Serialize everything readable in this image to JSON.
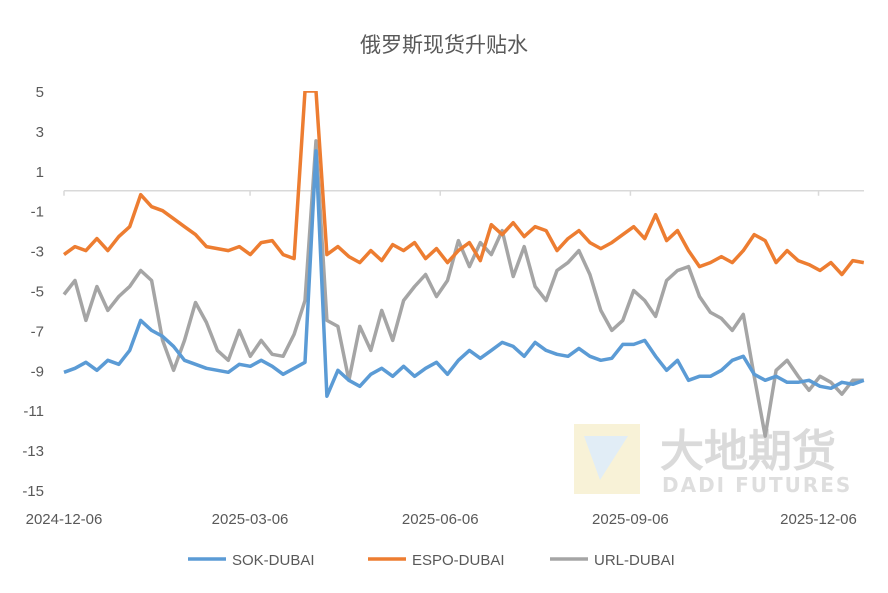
{
  "chart_data": {
    "type": "line",
    "title": "俄罗斯现货升贴水",
    "xlabel": "",
    "ylabel": "",
    "ylim": [
      -15,
      5
    ],
    "yticks": [
      5,
      3,
      1,
      -1,
      -3,
      -5,
      -7,
      -9,
      -11,
      -13,
      -15
    ],
    "x_start": "2024-12-06",
    "x_step_days": 5.3,
    "xlim_days": [
      0,
      387
    ],
    "xticks": [
      {
        "label": "2024-12-06",
        "day": 0
      },
      {
        "label": "2025-03-06",
        "day": 90
      },
      {
        "label": "2025-06-06",
        "day": 182
      },
      {
        "label": "2025-09-06",
        "day": 274
      },
      {
        "label": "2025-12-06",
        "day": 365
      }
    ],
    "grid": false,
    "legend_position": "bottom",
    "series": [
      {
        "name": "SOK-DUBAI",
        "color": "#5B9BD5",
        "values": [
          -9.1,
          -8.9,
          -8.6,
          -9.0,
          -8.5,
          -8.7,
          -8.0,
          -6.5,
          -7.0,
          -7.3,
          -7.8,
          -8.5,
          -8.7,
          -8.9,
          -9.0,
          -9.1,
          -8.7,
          -8.8,
          -8.5,
          -8.8,
          -9.2,
          -8.9,
          -8.6,
          2.0,
          -10.3,
          -9.0,
          -9.5,
          -9.8,
          -9.2,
          -8.9,
          -9.3,
          -8.8,
          -9.3,
          -8.9,
          -8.6,
          -9.2,
          -8.5,
          -8.0,
          -8.4,
          -8.0,
          -7.6,
          -7.8,
          -8.3,
          -7.6,
          -8.0,
          -8.2,
          -8.3,
          -7.9,
          -8.3,
          -8.5,
          -8.4,
          -7.7,
          -7.7,
          -7.5,
          -8.3,
          -9.0,
          -8.5,
          -9.5,
          -9.3,
          -9.3,
          -9.0,
          -8.5,
          -8.3,
          -9.2,
          -9.5,
          -9.3,
          -9.6,
          -9.6,
          -9.5,
          -9.8,
          -9.9,
          -9.6,
          -9.7,
          -9.5
        ]
      },
      {
        "name": "ESPO-DUBAI",
        "color": "#ED7D31",
        "values": [
          -3.2,
          -2.8,
          -3.0,
          -2.4,
          -3.0,
          -2.3,
          -1.8,
          -0.2,
          -0.8,
          -1.0,
          -1.4,
          -1.8,
          -2.2,
          -2.8,
          -2.9,
          -3.0,
          -2.8,
          -3.2,
          -2.6,
          -2.5,
          -3.2,
          -3.4,
          5.0,
          5.0,
          -3.2,
          -2.8,
          -3.3,
          -3.6,
          -3.0,
          -3.5,
          -2.7,
          -3.0,
          -2.6,
          -3.4,
          -2.9,
          -3.6,
          -3.0,
          -2.6,
          -3.5,
          -1.7,
          -2.2,
          -1.6,
          -2.3,
          -1.8,
          -2.0,
          -3.0,
          -2.4,
          -2.0,
          -2.6,
          -2.9,
          -2.6,
          -2.2,
          -1.8,
          -2.4,
          -1.2,
          -2.5,
          -2.0,
          -3.0,
          -3.8,
          -3.6,
          -3.3,
          -3.6,
          -3.0,
          -2.2,
          -2.5,
          -3.6,
          -3.0,
          -3.5,
          -3.7,
          -4.0,
          -3.6,
          -4.2,
          -3.5,
          -3.6
        ]
      },
      {
        "name": "URL-DUBAI",
        "color": "#A5A5A5",
        "values": [
          -5.2,
          -4.5,
          -6.5,
          -4.8,
          -6.0,
          -5.3,
          -4.8,
          -4.0,
          -4.5,
          -7.5,
          -9.0,
          -7.5,
          -5.6,
          -6.6,
          -8.0,
          -8.5,
          -7.0,
          -8.3,
          -7.5,
          -8.2,
          -8.3,
          -7.2,
          -5.5,
          2.5,
          -6.5,
          -6.8,
          -9.5,
          -6.8,
          -8.0,
          -6.0,
          -7.5,
          -5.5,
          -4.8,
          -4.2,
          -5.3,
          -4.5,
          -2.5,
          -3.8,
          -2.6,
          -3.2,
          -2.0,
          -4.3,
          -2.8,
          -4.8,
          -5.5,
          -4.0,
          -3.6,
          -3.0,
          -4.2,
          -6.0,
          -7.0,
          -6.5,
          -5.0,
          -5.5,
          -6.3,
          -4.5,
          -4.0,
          -3.8,
          -5.3,
          -6.1,
          -6.4,
          -7.0,
          -6.2,
          -9.3,
          -12.3,
          -9.0,
          -8.5,
          -9.3,
          -10.0,
          -9.3,
          -9.6,
          -10.2,
          -9.5,
          -9.5
        ]
      }
    ]
  },
  "watermark": {
    "cn": "大地期货",
    "en": "DADI FUTURES"
  }
}
